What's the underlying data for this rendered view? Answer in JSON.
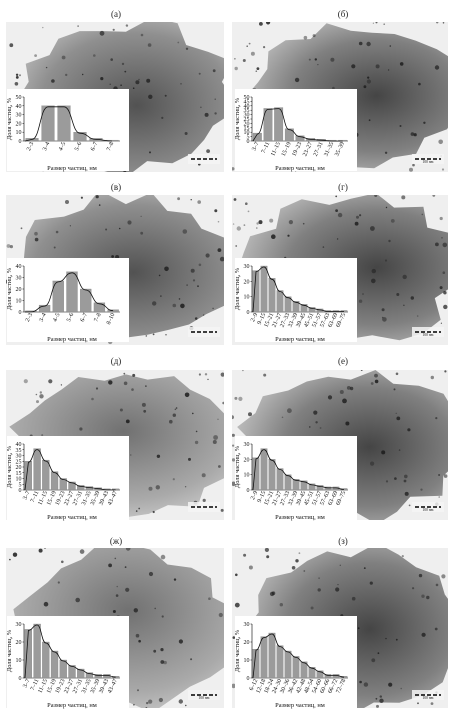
{
  "chart_data": [
    {
      "panel": "(а)",
      "type": "bar",
      "xlabel": "Размер частиц, нм",
      "ylabel": "Доля частиц, %",
      "ylim": [
        0,
        50
      ],
      "yticks": [
        0,
        10,
        20,
        30,
        40,
        50
      ],
      "categories": [
        "2–3",
        "3–4",
        "4–5",
        "5–6",
        "6–7",
        "7–8"
      ],
      "values": [
        3,
        40,
        40,
        10,
        3,
        1
      ],
      "scalebar_text": ""
    },
    {
      "panel": "(б)",
      "type": "bar",
      "xlabel": "Размер частиц, нм",
      "ylabel": "Доля частиц, %",
      "ylim": [
        0,
        50
      ],
      "yticks": [
        0,
        5,
        10,
        15,
        20,
        25,
        30,
        35,
        40,
        45,
        50
      ],
      "categories": [
        "3–7",
        "7–11",
        "11–15",
        "15–19",
        "19–23",
        "23–27",
        "27–31",
        "31–35",
        "35–39"
      ],
      "values": [
        9,
        37,
        38,
        14,
        6,
        3,
        2,
        1,
        1
      ],
      "scalebar_text": "100 nm"
    },
    {
      "panel": "(в)",
      "type": "bar",
      "xlabel": "Размер частиц, нм",
      "ylabel": "Доля частиц, %",
      "ylim": [
        0,
        40
      ],
      "yticks": [
        0,
        10,
        20,
        30,
        40
      ],
      "categories": [
        "2–3",
        "3–4",
        "4–5",
        "5–6",
        "6–7",
        "7–8",
        "8–10"
      ],
      "values": [
        1,
        6,
        27,
        35,
        20,
        8,
        2
      ],
      "scalebar_text": ""
    },
    {
      "panel": "(г)",
      "type": "bar",
      "xlabel": "Размер частиц, нм",
      "ylabel": "Доля частиц, %",
      "ylim": [
        0,
        30
      ],
      "yticks": [
        0,
        10,
        20,
        30
      ],
      "categories": [
        "2–9",
        "9–15",
        "15–21",
        "21–27",
        "27–33",
        "33–39",
        "39–45",
        "45–51",
        "51–57",
        "57–63",
        "63–69",
        "69–75"
      ],
      "values": [
        27,
        30,
        22,
        14,
        10,
        7,
        5,
        3,
        2,
        1,
        1,
        1
      ],
      "scalebar_text": "100 nm"
    },
    {
      "panel": "(д)",
      "type": "bar",
      "xlabel": "Размер частиц, нм",
      "ylabel": "Доля частиц, %",
      "ylim": [
        0,
        40
      ],
      "yticks": [
        0,
        5,
        10,
        15,
        20,
        25,
        30,
        35,
        40
      ],
      "categories": [
        "3–7",
        "7–11",
        "11–15",
        "15–19",
        "19–23",
        "23–27",
        "27–31",
        "31–35",
        "35–39",
        "39–43",
        "43–47"
      ],
      "values": [
        25,
        36,
        26,
        16,
        10,
        7,
        4,
        3,
        2,
        1,
        1
      ],
      "scalebar_text": ""
    },
    {
      "panel": "(е)",
      "type": "bar",
      "xlabel": "Размер частиц, нм",
      "ylabel": "Доля частиц, %",
      "ylim": [
        0,
        30
      ],
      "yticks": [
        0,
        10,
        20,
        30
      ],
      "categories": [
        "2–9",
        "9–15",
        "15–21",
        "21–27",
        "27–33",
        "33–39",
        "39–45",
        "45–51",
        "51–57",
        "57–63",
        "63–69",
        "69–75"
      ],
      "values": [
        21,
        27,
        20,
        14,
        10,
        7,
        6,
        4,
        3,
        2,
        2,
        1
      ],
      "scalebar_text": "100 nm"
    },
    {
      "panel": "(ж)",
      "type": "bar",
      "xlabel": "Размер частиц, нм",
      "ylabel": "Доля частиц, %",
      "ylim": [
        0,
        30
      ],
      "yticks": [
        0,
        10,
        20,
        30
      ],
      "categories": [
        "3–7",
        "7–11",
        "11–15",
        "15–19",
        "19–23",
        "23–27",
        "27–31",
        "31–35",
        "35–39",
        "39–43",
        "43–47"
      ],
      "values": [
        27,
        30,
        20,
        15,
        10,
        7,
        5,
        3,
        2,
        2,
        1
      ],
      "scalebar_text": "100 nm"
    },
    {
      "panel": "(з)",
      "type": "bar",
      "xlabel": "Размер частиц, нм",
      "ylabel": "Доля частиц, %",
      "ylim": [
        0,
        30
      ],
      "yticks": [
        0,
        10,
        20,
        30
      ],
      "categories": [
        "6–12",
        "12–18",
        "18–24",
        "24–30",
        "30–36",
        "36–42",
        "42–48",
        "48–54",
        "54–60",
        "60–66",
        "66–72",
        "72–78"
      ],
      "values": [
        16,
        23,
        25,
        18,
        15,
        12,
        9,
        6,
        4,
        2,
        2,
        1
      ],
      "scalebar_text": "100 nm"
    }
  ]
}
